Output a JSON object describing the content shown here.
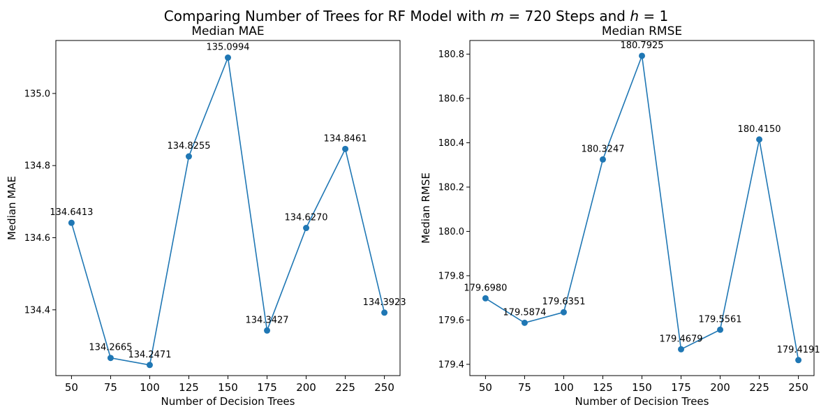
{
  "figure": {
    "suptitle_pre": "Comparing Number of Trees for RF Model with ",
    "suptitle_m": "m",
    "suptitle_mid": " = 720 Steps and ",
    "suptitle_h": "h",
    "suptitle_post": " = 1"
  },
  "colors": {
    "series": "#1f77b4",
    "text": "#000000"
  },
  "chart_data": [
    {
      "type": "line",
      "title": "Median MAE",
      "xlabel": "Number of Decision Trees",
      "ylabel": "Median MAE",
      "x": [
        50,
        75,
        100,
        125,
        150,
        175,
        200,
        225,
        250
      ],
      "y": [
        134.6413,
        134.2665,
        134.2471,
        134.8255,
        135.0994,
        134.3427,
        134.627,
        134.8461,
        134.3923
      ],
      "labels": [
        "134.6413",
        "134.2665",
        "134.2471",
        "134.8255",
        "135.0994",
        "134.3427",
        "134.6270",
        "134.8461",
        "134.3923"
      ],
      "xlim": [
        40,
        260
      ],
      "ylim": [
        134.2176,
        135.1469
      ],
      "xticks": [
        50,
        75,
        100,
        125,
        150,
        175,
        200,
        225,
        250
      ],
      "xtick_labels": [
        "50",
        "75",
        "100",
        "125",
        "150",
        "175",
        "200",
        "225",
        "250"
      ],
      "yticks": [
        134.4,
        134.6,
        134.8,
        135.0
      ],
      "ytick_labels": [
        "134.4",
        "134.6",
        "134.8",
        "135.0"
      ],
      "grid": false,
      "marker": "circle"
    },
    {
      "type": "line",
      "title": "Median RMSE",
      "xlabel": "Number of Decision Trees",
      "ylabel": "Median RMSE",
      "x": [
        50,
        75,
        100,
        125,
        150,
        175,
        200,
        225,
        250
      ],
      "y": [
        179.698,
        179.5874,
        179.6351,
        180.3247,
        180.7925,
        179.4679,
        179.5561,
        180.415,
        179.4191
      ],
      "labels": [
        "179.6980",
        "179.5874",
        "179.6351",
        "180.3247",
        "180.7925",
        "179.4679",
        "179.5561",
        "180.4150",
        "179.4191"
      ],
      "xlim": [
        40,
        260
      ],
      "ylim": [
        179.3491,
        180.8617
      ],
      "xticks": [
        50,
        75,
        100,
        125,
        150,
        175,
        200,
        225,
        250
      ],
      "xtick_labels": [
        "50",
        "75",
        "100",
        "125",
        "150",
        "175",
        "200",
        "225",
        "250"
      ],
      "yticks": [
        179.4,
        179.6,
        179.8,
        180.0,
        180.2,
        180.4,
        180.6,
        180.8
      ],
      "ytick_labels": [
        "179.4",
        "179.6",
        "179.8",
        "180.0",
        "180.2",
        "180.4",
        "180.6",
        "180.8"
      ],
      "grid": false,
      "marker": "circle"
    }
  ]
}
